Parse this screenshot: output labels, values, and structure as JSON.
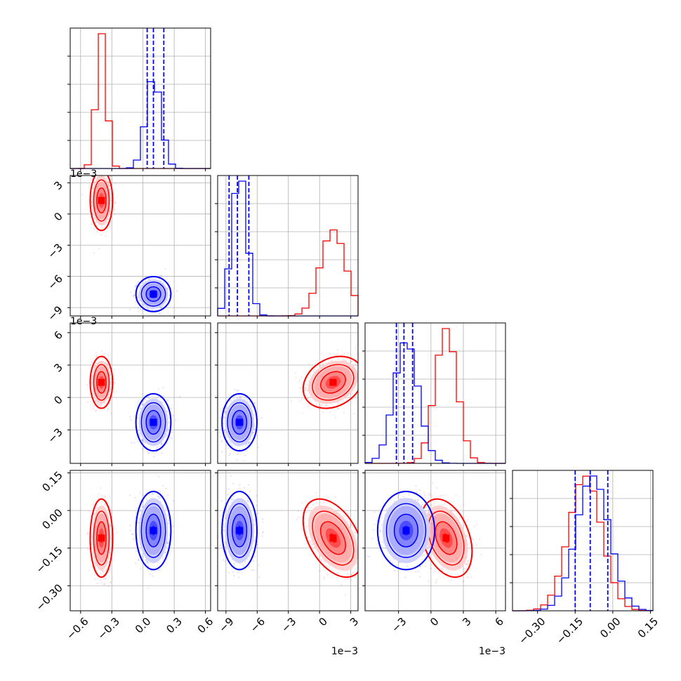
{
  "chart_data": {
    "type": "corner",
    "n_params": 4,
    "grid": true,
    "series": [
      {
        "color": "#ff0000",
        "means": [
          -0.4,
          0.0013,
          0.0014,
          -0.11
        ],
        "sds": [
          0.045,
          0.0012,
          0.001,
          0.065
        ],
        "corr": [
          [
            1,
            0,
            0,
            0
          ],
          [
            0,
            1,
            0.25,
            -0.45
          ],
          [
            0,
            0.25,
            1,
            -0.35
          ],
          [
            0,
            -0.45,
            -0.35,
            1
          ]
        ]
      },
      {
        "color": "#0000ff",
        "means": [
          0.1,
          -0.0077,
          -0.0023,
          -0.08
        ],
        "sds": [
          0.07,
          0.0007,
          0.0011,
          0.065
        ],
        "corr": [
          [
            1,
            0,
            0,
            0
          ],
          [
            0,
            1,
            0,
            0
          ],
          [
            0,
            0,
            1,
            0
          ],
          [
            0,
            0,
            0,
            1
          ]
        ],
        "quantiles": [
          [
            0.04,
            0.1,
            0.2
          ],
          [
            -0.0087,
            -0.0079,
            -0.0068
          ],
          [
            -0.0032,
            -0.0025,
            -0.0017
          ],
          [
            -0.15,
            -0.09,
            -0.02
          ]
        ]
      }
    ],
    "axes": [
      {
        "range": [
          -0.7,
          0.65
        ],
        "ticks": [
          -0.6,
          -0.3,
          0.0,
          0.3,
          0.6
        ],
        "ticklabels": [
          "−0.6",
          "−0.3",
          "0.0",
          "0.3",
          "0.6"
        ],
        "offset": ""
      },
      {
        "range": [
          -0.0098,
          0.0037
        ],
        "ticks": [
          -0.009,
          -0.006,
          -0.003,
          0.0,
          0.003
        ],
        "ticklabels": [
          "−9",
          "−6",
          "−3",
          "0",
          "3"
        ],
        "offset": "1e−3"
      },
      {
        "range": [
          -0.0061,
          0.0069
        ],
        "ticks": [
          -0.003,
          0.0,
          0.003,
          0.006
        ],
        "ticklabels": [
          "−3",
          "0",
          "3",
          "6"
        ],
        "offset": "1e−3"
      },
      {
        "range": [
          -0.4,
          0.16
        ],
        "ticks": [
          -0.3,
          -0.15,
          0.0,
          0.15
        ],
        "ticklabels": [
          "−0.30",
          "−0.15",
          "0.00",
          "0.15"
        ],
        "offset": ""
      }
    ]
  }
}
